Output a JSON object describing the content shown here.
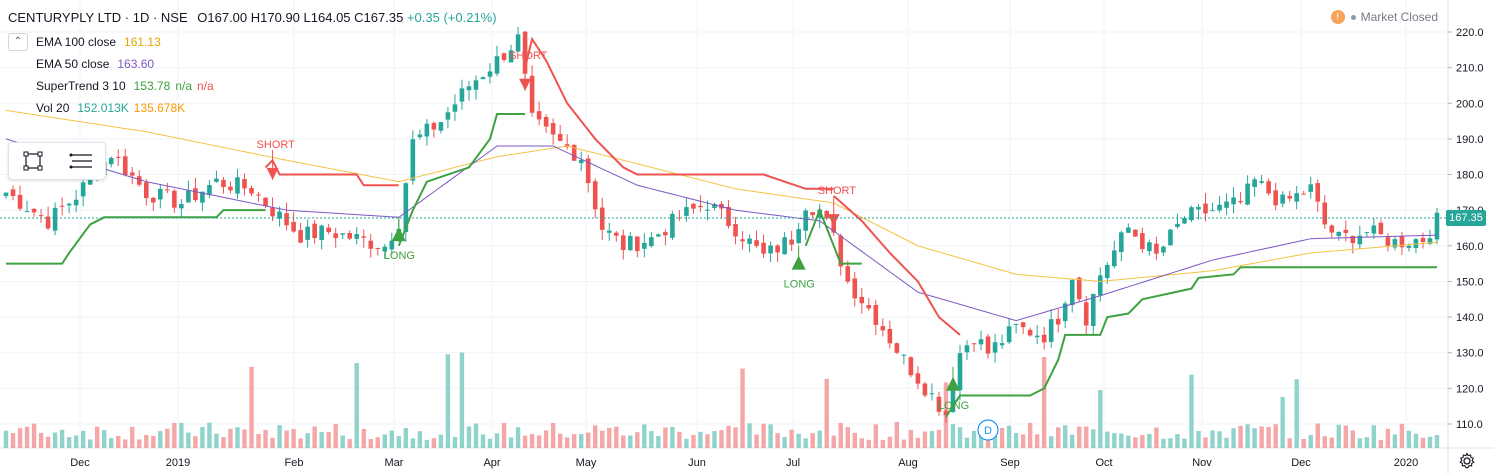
{
  "header": {
    "symbol": "CENTURYPLY LTD · 1D · NSE",
    "open": "O167.00",
    "high": "H170.90",
    "low": "L164.05",
    "close": "C167.35",
    "change": "+0.35 (+0.21%)"
  },
  "legend": [
    {
      "name": "EMA 100 close",
      "value": "161.13",
      "color": "#f5c343"
    },
    {
      "name": "EMA 50 close",
      "value": "163.60",
      "color": "#7e57c2"
    },
    {
      "name": "SuperTrend 3 10",
      "value": "153.78",
      "extra": "n/a",
      "extra2": "n/a",
      "color": "#3fa140",
      "color2": "#ef5350"
    },
    {
      "name": "Vol 20",
      "value": "152.013K",
      "value2": "135.678K",
      "color": "#26a69a",
      "color2": "#ff9800"
    }
  ],
  "market_status": "Market Closed",
  "last_price_label": "167.35",
  "icons": {
    "legend_collapse": "chevron-up-icon",
    "rectangle_tool": "rectangle-icon",
    "menu_tool": "hamburger-icon",
    "settings": "gear-icon",
    "market": "exclamation-icon",
    "dividend": "dividend-marker-icon"
  },
  "colors": {
    "up": "#26a69a",
    "down": "#ef5350",
    "ema100": "#f5c343",
    "ema50": "#7e57c2",
    "supertrend_up": "#3fa140",
    "supertrend_down": "#ef5350",
    "vol_up": "#8fd3cb",
    "vol_down": "#f5a6a6"
  },
  "chart_data": {
    "type": "candlestick",
    "y_axis": {
      "ticks": [
        110,
        120,
        130,
        140,
        150,
        160,
        170,
        180,
        190,
        200,
        210,
        220
      ],
      "range": [
        104,
        224
      ],
      "side": "right"
    },
    "x_axis": {
      "labels": [
        "Dec",
        "2019",
        "Feb",
        "Mar",
        "Apr",
        "May",
        "Jun",
        "Jul",
        "Aug",
        "Sep",
        "Oct",
        "Nov",
        "Dec",
        "2020"
      ]
    },
    "grid": true,
    "markers": [
      {
        "text": "SHORT",
        "type": "short",
        "date_index": 38,
        "value": 183
      },
      {
        "text": "LONG",
        "type": "long",
        "date_index": 56,
        "value": 163
      },
      {
        "text": "SHORT",
        "type": "short",
        "date_index": 74,
        "value": 208
      },
      {
        "text": "LONG",
        "type": "long",
        "date_index": 113,
        "value": 155
      },
      {
        "text": "SHORT",
        "type": "short",
        "date_index": 118,
        "value": 170
      },
      {
        "text": "LONG",
        "type": "long",
        "date_index": 135,
        "value": 121
      }
    ],
    "dividend_marker": "D",
    "close_anchors": [
      [
        0,
        175
      ],
      [
        6,
        167
      ],
      [
        10,
        174
      ],
      [
        15,
        186
      ],
      [
        20,
        175
      ],
      [
        25,
        172
      ],
      [
        30,
        178
      ],
      [
        35,
        176
      ],
      [
        38,
        170
      ],
      [
        42,
        163
      ],
      [
        46,
        164
      ],
      [
        50,
        162
      ],
      [
        54,
        160
      ],
      [
        56,
        167
      ],
      [
        58,
        189
      ],
      [
        62,
        195
      ],
      [
        66,
        205
      ],
      [
        70,
        212
      ],
      [
        73,
        218
      ],
      [
        75,
        195
      ],
      [
        78,
        190
      ],
      [
        82,
        185
      ],
      [
        85,
        165
      ],
      [
        88,
        160
      ],
      [
        92,
        162
      ],
      [
        96,
        168
      ],
      [
        100,
        172
      ],
      [
        104,
        165
      ],
      [
        108,
        157
      ],
      [
        112,
        162
      ],
      [
        114,
        172
      ],
      [
        116,
        170
      ],
      [
        118,
        162
      ],
      [
        120,
        150
      ],
      [
        124,
        140
      ],
      [
        128,
        128
      ],
      [
        132,
        118
      ],
      [
        134,
        113
      ],
      [
        136,
        130
      ],
      [
        138,
        135
      ],
      [
        140,
        130
      ],
      [
        144,
        137
      ],
      [
        148,
        135
      ],
      [
        150,
        140
      ],
      [
        152,
        152
      ],
      [
        154,
        140
      ],
      [
        156,
        152
      ],
      [
        160,
        165
      ],
      [
        164,
        157
      ],
      [
        168,
        168
      ],
      [
        172,
        170
      ],
      [
        176,
        172
      ],
      [
        178,
        178
      ],
      [
        182,
        172
      ],
      [
        186,
        176
      ],
      [
        188,
        166
      ],
      [
        190,
        162
      ],
      [
        194,
        164
      ],
      [
        198,
        161
      ],
      [
        202,
        162
      ],
      [
        204,
        167
      ]
    ],
    "ema100_anchors": [
      [
        0,
        198
      ],
      [
        20,
        192
      ],
      [
        40,
        184
      ],
      [
        56,
        178
      ],
      [
        70,
        185
      ],
      [
        80,
        188
      ],
      [
        90,
        183
      ],
      [
        104,
        176
      ],
      [
        118,
        172
      ],
      [
        130,
        160
      ],
      [
        144,
        152
      ],
      [
        156,
        150
      ],
      [
        172,
        153
      ],
      [
        186,
        158
      ],
      [
        204,
        161
      ]
    ],
    "ema50_anchors": [
      [
        0,
        190
      ],
      [
        20,
        178
      ],
      [
        40,
        170
      ],
      [
        56,
        168
      ],
      [
        70,
        188
      ],
      [
        78,
        188
      ],
      [
        90,
        177
      ],
      [
        104,
        170
      ],
      [
        116,
        167
      ],
      [
        130,
        147
      ],
      [
        144,
        139
      ],
      [
        156,
        146
      ],
      [
        172,
        156
      ],
      [
        186,
        162
      ],
      [
        204,
        163
      ]
    ],
    "supertrend": [
      {
        "trend": "up",
        "points": [
          [
            0,
            155
          ],
          [
            8,
            155
          ],
          [
            9,
            158
          ],
          [
            12,
            166
          ],
          [
            14,
            168
          ],
          [
            30,
            168
          ],
          [
            31,
            170
          ],
          [
            37,
            170
          ]
        ]
      },
      {
        "trend": "down",
        "points": [
          [
            37,
            182
          ],
          [
            38,
            184
          ],
          [
            39,
            180
          ],
          [
            50,
            180
          ],
          [
            51,
            177
          ],
          [
            56,
            177
          ]
        ]
      },
      {
        "trend": "up",
        "points": [
          [
            56,
            160
          ],
          [
            58,
            170
          ],
          [
            60,
            178
          ],
          [
            66,
            182
          ],
          [
            69,
            190
          ],
          [
            70,
            197
          ],
          [
            74,
            197
          ]
        ]
      },
      {
        "trend": "down",
        "points": [
          [
            74,
            210
          ],
          [
            75,
            218
          ],
          [
            77,
            212
          ],
          [
            80,
            200
          ],
          [
            84,
            190
          ],
          [
            88,
            182
          ],
          [
            90,
            180
          ],
          [
            108,
            180
          ],
          [
            114,
            176
          ],
          [
            118,
            176
          ]
        ]
      },
      {
        "trend": "up",
        "points": [
          [
            114,
            160
          ],
          [
            116,
            170
          ],
          [
            118,
            160
          ],
          [
            119,
            155
          ],
          [
            122,
            155
          ]
        ]
      },
      {
        "trend": "down",
        "points": [
          [
            118,
            174
          ],
          [
            122,
            167
          ],
          [
            126,
            158
          ],
          [
            130,
            150
          ],
          [
            133,
            140
          ],
          [
            136,
            135
          ]
        ]
      },
      {
        "trend": "up",
        "points": [
          [
            134,
            112
          ],
          [
            136,
            118
          ],
          [
            146,
            118
          ],
          [
            148,
            120
          ],
          [
            150,
            128
          ],
          [
            151,
            135
          ],
          [
            156,
            135
          ],
          [
            157,
            140
          ],
          [
            160,
            141
          ],
          [
            162,
            145
          ],
          [
            169,
            148
          ],
          [
            170,
            151
          ],
          [
            175,
            152
          ],
          [
            176,
            154
          ],
          [
            204,
            154
          ]
        ]
      }
    ],
    "volume_max_label": "",
    "n_bars": 205
  }
}
